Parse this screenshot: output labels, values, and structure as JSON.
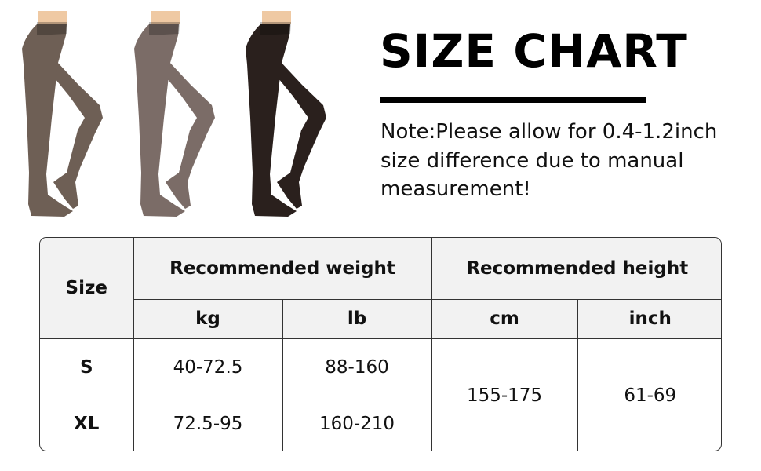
{
  "product_images": [
    {
      "name": "tights-brown",
      "color": "#6e5f55"
    },
    {
      "name": "tights-grey-brown",
      "color": "#7b6c67"
    },
    {
      "name": "tights-black",
      "color": "#2a201d"
    }
  ],
  "header": {
    "title": "SIZE CHART",
    "note": "Note:Please allow for 0.4-1.2inch size difference due to manual measurement!"
  },
  "table": {
    "size_header": "Size",
    "weight_header": "Recommended weight",
    "height_header": "Recommended height",
    "units": [
      "kg",
      "lb",
      "cm",
      "inch"
    ],
    "rows": [
      {
        "size": "S",
        "kg": "40-72.5",
        "lb": "88-160"
      },
      {
        "size": "XL",
        "kg": "72.5-95",
        "lb": "160-210"
      }
    ],
    "height_cm": "155-175",
    "height_inch": "61-69"
  }
}
